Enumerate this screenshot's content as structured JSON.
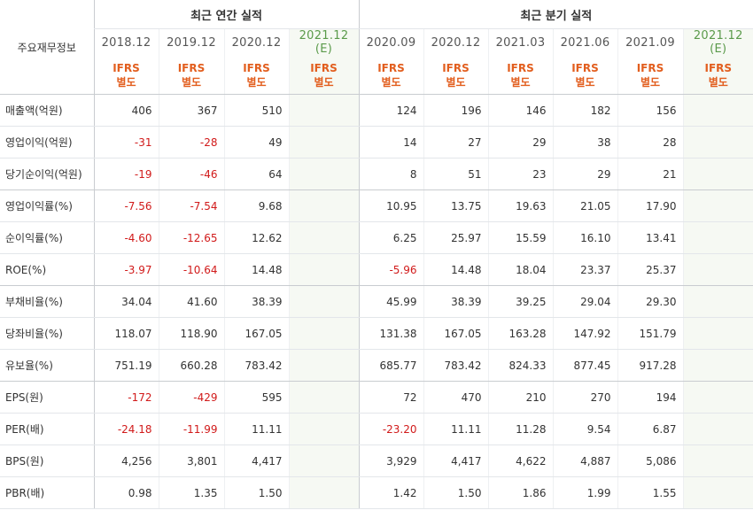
{
  "header": {
    "row_label": "주요재무정보",
    "annual_title": "최근 연간 실적",
    "quarterly_title": "최근 분기 실적"
  },
  "columns": [
    {
      "period": "2018.12",
      "standard": "IFRS",
      "basis": "별도",
      "estimate": false
    },
    {
      "period": "2019.12",
      "standard": "IFRS",
      "basis": "별도",
      "estimate": false
    },
    {
      "period": "2020.12",
      "standard": "IFRS",
      "basis": "별도",
      "estimate": false
    },
    {
      "period": "2021.12",
      "est_mark": "(E)",
      "standard": "IFRS",
      "basis": "별도",
      "estimate": true
    },
    {
      "period": "2020.09",
      "standard": "IFRS",
      "basis": "별도",
      "estimate": false
    },
    {
      "period": "2020.12",
      "standard": "IFRS",
      "basis": "별도",
      "estimate": false
    },
    {
      "period": "2021.03",
      "standard": "IFRS",
      "basis": "별도",
      "estimate": false
    },
    {
      "period": "2021.06",
      "standard": "IFRS",
      "basis": "별도",
      "estimate": false
    },
    {
      "period": "2021.09",
      "standard": "IFRS",
      "basis": "별도",
      "estimate": false
    },
    {
      "period": "2021.12",
      "est_mark": "(E)",
      "standard": "IFRS",
      "basis": "별도",
      "estimate": true
    }
  ],
  "rows": [
    {
      "label": "매출액(억원)",
      "values": [
        "406",
        "367",
        "510",
        "",
        "124",
        "196",
        "146",
        "182",
        "156",
        ""
      ]
    },
    {
      "label": "영업이익(억원)",
      "values": [
        "-31",
        "-28",
        "49",
        "",
        "14",
        "27",
        "29",
        "38",
        "28",
        ""
      ]
    },
    {
      "label": "당기순이익(억원)",
      "values": [
        "-19",
        "-46",
        "64",
        "",
        "8",
        "51",
        "23",
        "29",
        "21",
        ""
      ]
    },
    {
      "label": "영업이익률(%)",
      "values": [
        "-7.56",
        "-7.54",
        "9.68",
        "",
        "10.95",
        "13.75",
        "19.63",
        "21.05",
        "17.90",
        ""
      ]
    },
    {
      "label": "순이익률(%)",
      "values": [
        "-4.60",
        "-12.65",
        "12.62",
        "",
        "6.25",
        "25.97",
        "15.59",
        "16.10",
        "13.41",
        ""
      ]
    },
    {
      "label": "ROE(%)",
      "values": [
        "-3.97",
        "-10.64",
        "14.48",
        "",
        "-5.96",
        "14.48",
        "18.04",
        "23.37",
        "25.37",
        ""
      ]
    },
    {
      "label": "부채비율(%)",
      "values": [
        "34.04",
        "41.60",
        "38.39",
        "",
        "45.99",
        "38.39",
        "39.25",
        "29.04",
        "29.30",
        ""
      ]
    },
    {
      "label": "당좌비율(%)",
      "values": [
        "118.07",
        "118.90",
        "167.05",
        "",
        "131.38",
        "167.05",
        "163.28",
        "147.92",
        "151.79",
        ""
      ]
    },
    {
      "label": "유보율(%)",
      "values": [
        "751.19",
        "660.28",
        "783.42",
        "",
        "685.77",
        "783.42",
        "824.33",
        "877.45",
        "917.28",
        ""
      ]
    },
    {
      "label": "EPS(원)",
      "values": [
        "-172",
        "-429",
        "595",
        "",
        "72",
        "470",
        "210",
        "270",
        "194",
        ""
      ]
    },
    {
      "label": "PER(배)",
      "values": [
        "-24.18",
        "-11.99",
        "11.11",
        "",
        "-23.20",
        "11.11",
        "11.28",
        "9.54",
        "6.87",
        ""
      ]
    },
    {
      "label": "BPS(원)",
      "values": [
        "4,256",
        "3,801",
        "4,417",
        "",
        "3,929",
        "4,417",
        "4,622",
        "4,887",
        "5,086",
        ""
      ]
    },
    {
      "label": "PBR(배)",
      "values": [
        "0.98",
        "1.35",
        "1.50",
        "",
        "1.42",
        "1.50",
        "1.86",
        "1.99",
        "1.55",
        ""
      ]
    }
  ],
  "colors": {
    "negative": "#d11a1a",
    "ifrs_label": "#e25e1e",
    "estimate_bg": "#f6f9f3",
    "estimate_head": "#5a9a4a"
  }
}
